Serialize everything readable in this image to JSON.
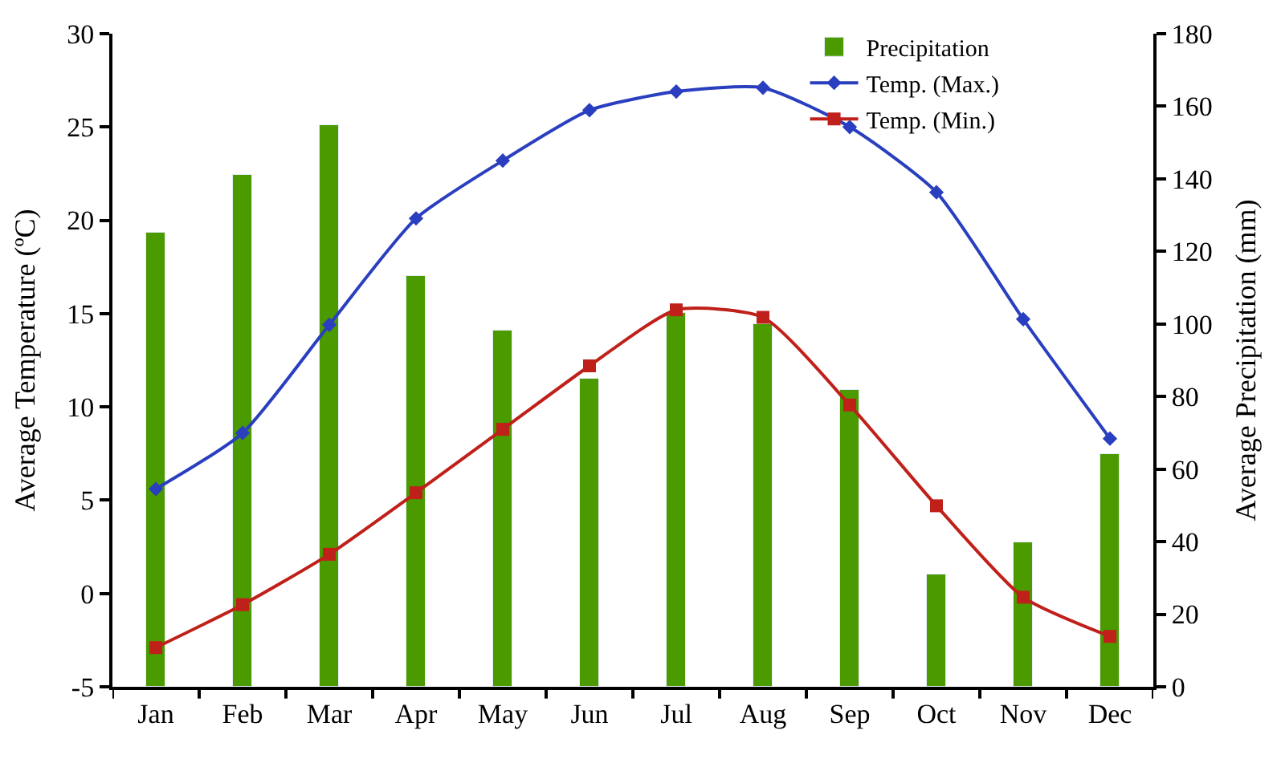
{
  "chart_data": {
    "type": "bar",
    "categories": [
      "Jan",
      "Feb",
      "Mar",
      "Apr",
      "May",
      "Jun",
      "Jul",
      "Aug",
      "Sep",
      "Oct",
      "Nov",
      "Dec"
    ],
    "ylabel": "Average Temperature (ºC)",
    "y2label": "Average Precipitation (mm)",
    "ylim": [
      -5,
      30
    ],
    "yticks": [
      -5,
      0,
      5,
      10,
      15,
      20,
      25,
      30
    ],
    "y2lim": [
      0,
      180
    ],
    "y2ticks": [
      0,
      20,
      40,
      60,
      80,
      100,
      120,
      140,
      160,
      180
    ],
    "legend": "top right",
    "series": [
      {
        "name": "Precipitation",
        "axis": "y2",
        "color": "#4a9a00",
        "values": [
          125,
          141,
          155,
          113,
          98,
          85,
          103,
          100,
          82,
          31,
          40,
          64
        ]
      },
      {
        "name": "Temp. (Max.)",
        "type": "line",
        "color": "#2a3fbf",
        "marker": "diamond",
        "values": [
          5.6,
          8.6,
          14.4,
          20.1,
          23.2,
          25.9,
          26.9,
          27.1,
          25.0,
          21.5,
          14.7,
          8.3
        ]
      },
      {
        "name": "Temp. (Min.)",
        "type": "line",
        "color": "#c0201a",
        "marker": "square",
        "values": [
          -2.9,
          -0.6,
          2.1,
          5.4,
          8.8,
          12.2,
          15.2,
          14.8,
          10.1,
          4.7,
          -0.2,
          -2.3
        ]
      }
    ]
  }
}
